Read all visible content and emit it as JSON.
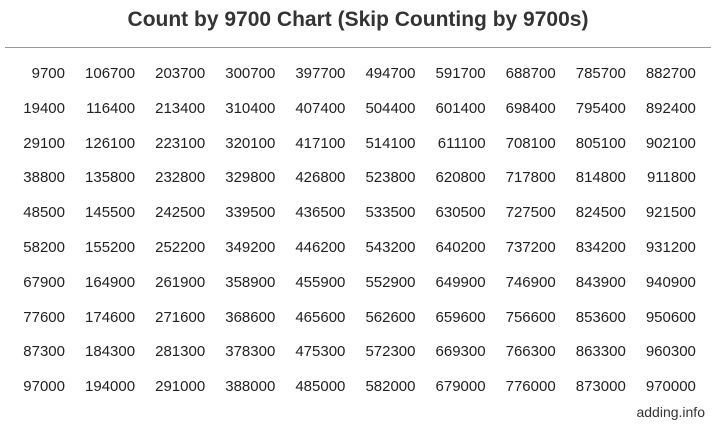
{
  "title": "Count by 9700 Chart (Skip Counting by 9700s)",
  "footer": "adding.info",
  "chart_data": {
    "type": "table",
    "title": "Count by 9700 Chart (Skip Counting by 9700s)",
    "rows": [
      [
        "9700",
        "106700",
        "203700",
        "300700",
        "397700",
        "494700",
        "591700",
        "688700",
        "785700",
        "882700"
      ],
      [
        "19400",
        "116400",
        "213400",
        "310400",
        "407400",
        "504400",
        "601400",
        "698400",
        "795400",
        "892400"
      ],
      [
        "29100",
        "126100",
        "223100",
        "320100",
        "417100",
        "514100",
        "611100",
        "708100",
        "805100",
        "902100"
      ],
      [
        "38800",
        "135800",
        "232800",
        "329800",
        "426800",
        "523800",
        "620800",
        "717800",
        "814800",
        "911800"
      ],
      [
        "48500",
        "145500",
        "242500",
        "339500",
        "436500",
        "533500",
        "630500",
        "727500",
        "824500",
        "921500"
      ],
      [
        "58200",
        "155200",
        "252200",
        "349200",
        "446200",
        "543200",
        "640200",
        "737200",
        "834200",
        "931200"
      ],
      [
        "67900",
        "164900",
        "261900",
        "358900",
        "455900",
        "552900",
        "649900",
        "746900",
        "843900",
        "940900"
      ],
      [
        "77600",
        "174600",
        "271600",
        "368600",
        "465600",
        "562600",
        "659600",
        "756600",
        "853600",
        "950600"
      ],
      [
        "87300",
        "184300",
        "281300",
        "378300",
        "475300",
        "572300",
        "669300",
        "766300",
        "863300",
        "960300"
      ],
      [
        "97000",
        "194000",
        "291000",
        "388000",
        "485000",
        "582000",
        "679000",
        "776000",
        "873000",
        "970000"
      ]
    ]
  }
}
